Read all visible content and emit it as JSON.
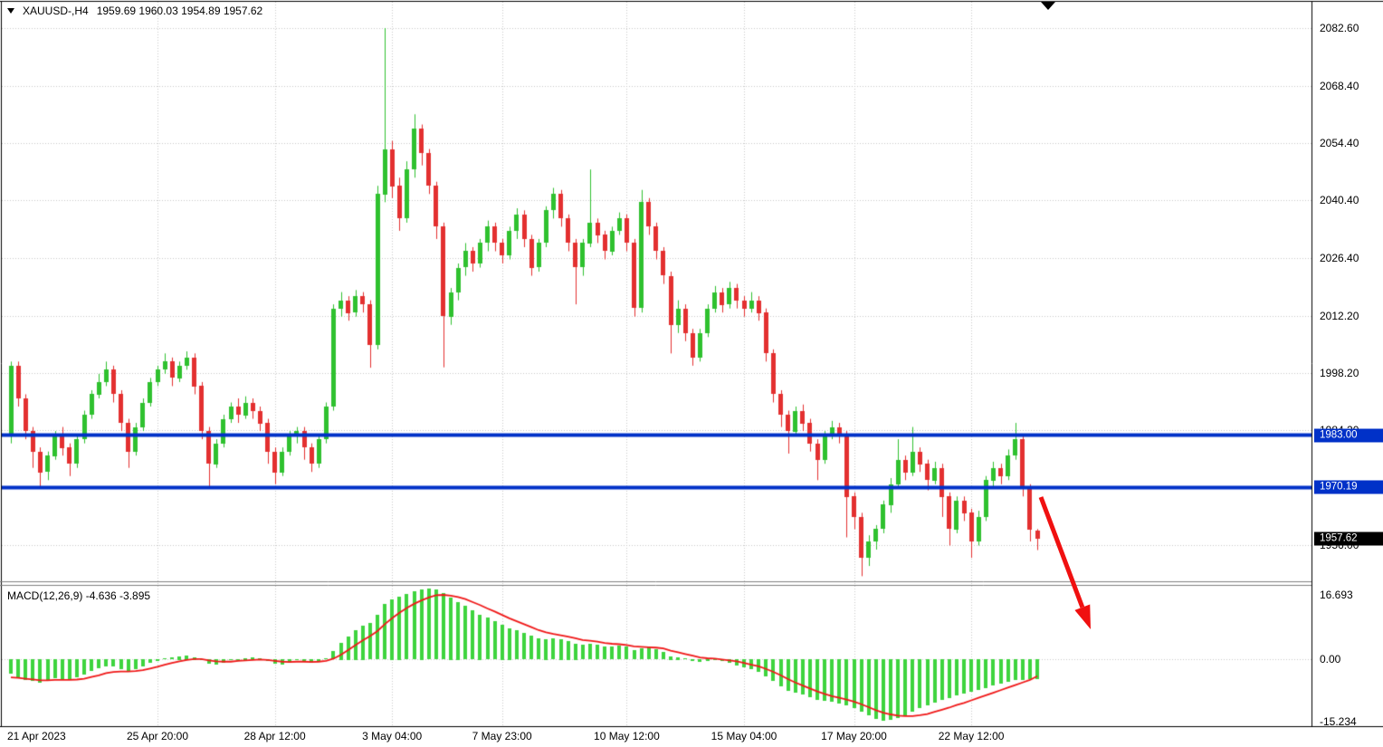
{
  "window": {
    "title_symbol": "XAUUSD-,H4",
    "title_ohlc": "1959.69 1960.03 1954.89 1957.62"
  },
  "colors": {
    "bull": "#2FC12F",
    "bear": "#E33030",
    "grid": "#C8C8C8",
    "level_line": "#0031C8",
    "level_badge_bg": "#0031C8",
    "current_badge_bg": "#000000",
    "macd_histogram": "#3ED43E",
    "macd_signal": "#F01818",
    "arrow": "#F01010",
    "frame": "#000000",
    "splitter": "#808080"
  },
  "price_axis": {
    "ticks": [
      "2082.60",
      "2068.40",
      "2054.40",
      "2040.40",
      "2026.40",
      "2012.20",
      "1998.20",
      "1984.20",
      "1970.20",
      "1956.00"
    ]
  },
  "time_axis": {
    "ticks": [
      {
        "index": 0,
        "label": "21 Apr 2023"
      },
      {
        "index": 20,
        "label": "25 Apr 20:00"
      },
      {
        "index": 36,
        "label": "28 Apr 12:00"
      },
      {
        "index": 52,
        "label": "3 May 04:00"
      },
      {
        "index": 67,
        "label": "7 May 23:00"
      },
      {
        "index": 84,
        "label": "10 May 12:00"
      },
      {
        "index": 100,
        "label": "15 May 04:00"
      },
      {
        "index": 115,
        "label": "17 May 20:00"
      },
      {
        "index": 131,
        "label": "22 May 12:00"
      }
    ]
  },
  "levels": {
    "resistance": {
      "label": "1983.00",
      "value": 1983.0
    },
    "support": {
      "label": "1970.19",
      "value": 1970.19
    }
  },
  "current_price": {
    "label": "1957.62",
    "value": 1957.62
  },
  "macd": {
    "label": "MACD(12,26,9) -4.636 -3.895",
    "main_value": -4.636,
    "signal_value": -3.895,
    "ticks": [
      {
        "label": "16.693",
        "value": 16.693
      },
      {
        "label": "0.00",
        "value": 0
      },
      {
        "label": "-15.234",
        "value": -15.234
      }
    ]
  },
  "annotations": {
    "trend_arrow": {
      "from": [
        1150,
        549
      ],
      "to": [
        1205,
        695
      ]
    }
  },
  "chart_data": [
    {
      "type": "candlestick",
      "title": "XAUUSD- H4",
      "ylim": [
        1947.5,
        2087.7
      ],
      "levels": [
        1983.0,
        1970.19
      ],
      "last_price": 1957.62,
      "ohlc": [
        [
          1983,
          2001,
          1981,
          2000
        ],
        [
          2000,
          2001,
          1990,
          1992
        ],
        [
          1992,
          1993,
          1982,
          1984
        ],
        [
          1984,
          1985,
          1975,
          1979
        ],
        [
          1979,
          1980,
          1970.5,
          1974
        ],
        [
          1974,
          1979,
          1972,
          1978
        ],
        [
          1978,
          1984,
          1977,
          1983
        ],
        [
          1983,
          1985,
          1978,
          1980
        ],
        [
          1980,
          1981,
          1973,
          1976
        ],
        [
          1976,
          1983,
          1975,
          1982
        ],
        [
          1982,
          1989,
          1981,
          1988
        ],
        [
          1988,
          1994,
          1987,
          1993
        ],
        [
          1993,
          1998,
          1992,
          1996
        ],
        [
          1996,
          2001,
          1995,
          1999
        ],
        [
          1999,
          2000,
          1991,
          1993
        ],
        [
          1993,
          1994,
          1984,
          1986
        ],
        [
          1986,
          1987,
          1975,
          1979
        ],
        [
          1979,
          1986,
          1978,
          1985
        ],
        [
          1985,
          1992,
          1984,
          1991
        ],
        [
          1991,
          1997,
          1990,
          1996
        ],
        [
          1996,
          2000,
          1995,
          1999
        ],
        [
          1999,
          2003,
          1998,
          2001
        ],
        [
          2001,
          2002,
          1995,
          1997
        ],
        [
          1997,
          2001,
          1996,
          2000
        ],
        [
          2000,
          2003.5,
          1999,
          2002
        ],
        [
          2002,
          2003,
          1993,
          1995
        ],
        [
          1995,
          1996,
          1982,
          1984
        ],
        [
          1984,
          1985,
          1970,
          1976
        ],
        [
          1976,
          1982,
          1975,
          1981
        ],
        [
          1981,
          1988,
          1980,
          1987
        ],
        [
          1987,
          1991,
          1986,
          1990
        ],
        [
          1990,
          1992,
          1986,
          1988
        ],
        [
          1988,
          1992.5,
          1987,
          1991
        ],
        [
          1991,
          1992,
          1987,
          1989
        ],
        [
          1989,
          1990,
          1984,
          1986
        ],
        [
          1986,
          1987,
          1976,
          1979
        ],
        [
          1979,
          1980,
          1971,
          1974
        ],
        [
          1974,
          1980,
          1973,
          1979
        ],
        [
          1979,
          1984,
          1978,
          1983
        ],
        [
          1983,
          1985,
          1981,
          1984
        ],
        [
          1984,
          1985,
          1977,
          1980
        ],
        [
          1980,
          1981,
          1974,
          1976
        ],
        [
          1976,
          1983,
          1975,
          1982
        ],
        [
          1982,
          1991,
          1981,
          1990
        ],
        [
          1990,
          2015,
          1989,
          2014
        ],
        [
          2014,
          2018,
          2012,
          2016
        ],
        [
          2016,
          2017,
          2011,
          2013
        ],
        [
          2013,
          2018.5,
          2012,
          2017
        ],
        [
          2017,
          2018,
          2013,
          2015
        ],
        [
          2015,
          2016,
          1999.5,
          2005
        ],
        [
          2005,
          2044,
          2004,
          2042
        ],
        [
          2042,
          2082.6,
          2040,
          2053
        ],
        [
          2053,
          2055,
          2041,
          2044
        ],
        [
          2044,
          2046,
          2033,
          2036
        ],
        [
          2036,
          2050,
          2035,
          2048
        ],
        [
          2048,
          2061.5,
          2046,
          2058
        ],
        [
          2058,
          2059,
          2049,
          2052
        ],
        [
          2052,
          2053,
          2042,
          2044
        ],
        [
          2044,
          2045,
          2031,
          2034
        ],
        [
          2034,
          2035,
          1999.6,
          2012
        ],
        [
          2012,
          2019,
          2010,
          2018
        ],
        [
          2018,
          2025,
          2016,
          2024
        ],
        [
          2024,
          2030,
          2022,
          2028
        ],
        [
          2028,
          2029,
          2023,
          2025
        ],
        [
          2025,
          2031,
          2024,
          2030
        ],
        [
          2030,
          2035.5,
          2028,
          2034
        ],
        [
          2034,
          2035,
          2028,
          2030
        ],
        [
          2030,
          2031,
          2025,
          2027
        ],
        [
          2027,
          2034,
          2026,
          2033
        ],
        [
          2033,
          2038.5,
          2031,
          2037
        ],
        [
          2037,
          2038,
          2029,
          2031
        ],
        [
          2031,
          2032,
          2022,
          2024
        ],
        [
          2024,
          2031,
          2023,
          2030
        ],
        [
          2030,
          2039,
          2029,
          2038
        ],
        [
          2038,
          2043.5,
          2036,
          2042
        ],
        [
          2042,
          2043,
          2034,
          2036
        ],
        [
          2036,
          2037,
          2028,
          2030
        ],
        [
          2030,
          2031,
          2015,
          2024
        ],
        [
          2024,
          2031,
          2022,
          2030
        ],
        [
          2030,
          2048,
          2029,
          2035
        ],
        [
          2035,
          2036,
          2030,
          2032
        ],
        [
          2032,
          2033,
          2026,
          2028
        ],
        [
          2028,
          2034,
          2027,
          2033
        ],
        [
          2033,
          2037.5,
          2032,
          2036
        ],
        [
          2036,
          2037,
          2028,
          2030
        ],
        [
          2030,
          2031,
          2012,
          2014
        ],
        [
          2014,
          2043,
          2013,
          2040
        ],
        [
          2040,
          2041,
          2032,
          2034
        ],
        [
          2034,
          2035,
          2026,
          2028
        ],
        [
          2028,
          2029,
          2020,
          2022
        ],
        [
          2022,
          2023,
          2003,
          2010
        ],
        [
          2010,
          2016,
          2008,
          2014
        ],
        [
          2014,
          2015,
          2006,
          2008
        ],
        [
          2008,
          2009,
          2000,
          2002
        ],
        [
          2002,
          2009,
          2001,
          2008
        ],
        [
          2008,
          2015,
          2007,
          2014
        ],
        [
          2014,
          2019.5,
          2013,
          2018
        ],
        [
          2018,
          2019,
          2013,
          2015
        ],
        [
          2015,
          2020.5,
          2014,
          2019
        ],
        [
          2019,
          2020,
          2014,
          2016
        ],
        [
          2016,
          2017,
          2012,
          2014
        ],
        [
          2014,
          2018,
          2013,
          2016
        ],
        [
          2016,
          2017,
          2011,
          2013
        ],
        [
          2013,
          2014,
          2001,
          2003
        ],
        [
          2003,
          2004,
          1991,
          1993
        ],
        [
          1993,
          1994,
          1985,
          1988
        ],
        [
          1988,
          1989,
          1978.5,
          1984
        ],
        [
          1984,
          1990,
          1983,
          1989
        ],
        [
          1989,
          1990.5,
          1984,
          1986
        ],
        [
          1986,
          1987,
          1979,
          1981
        ],
        [
          1981,
          1982,
          1972,
          1977
        ],
        [
          1977,
          1984,
          1976,
          1983
        ],
        [
          1983,
          1986.5,
          1982,
          1985
        ],
        [
          1985,
          1986,
          1981,
          1983
        ],
        [
          1983,
          1984,
          1958,
          1968
        ],
        [
          1968,
          1969,
          1960,
          1963
        ],
        [
          1963,
          1964,
          1948.5,
          1953
        ],
        [
          1953,
          1958.5,
          1951,
          1957
        ],
        [
          1957,
          1961,
          1955,
          1960
        ],
        [
          1960,
          1967,
          1959,
          1966
        ],
        [
          1966,
          1972.5,
          1964,
          1971
        ],
        [
          1971,
          1982,
          1970,
          1977
        ],
        [
          1977,
          1978,
          1972,
          1974
        ],
        [
          1974,
          1985,
          1973,
          1979
        ],
        [
          1979,
          1980,
          1974,
          1976
        ],
        [
          1976,
          1977,
          1969.5,
          1972
        ],
        [
          1972,
          1976.5,
          1971,
          1975
        ],
        [
          1975,
          1976,
          1963,
          1968
        ],
        [
          1968,
          1969,
          1956,
          1960
        ],
        [
          1960,
          1968,
          1959,
          1967
        ],
        [
          1967,
          1968,
          1962,
          1964
        ],
        [
          1964,
          1965,
          1953,
          1957
        ],
        [
          1957,
          1964.5,
          1956,
          1963
        ],
        [
          1963,
          1973,
          1962,
          1972
        ],
        [
          1972,
          1976.5,
          1970,
          1975
        ],
        [
          1975,
          1976,
          1971,
          1973
        ],
        [
          1973,
          1979.5,
          1972,
          1978
        ],
        [
          1978,
          1986,
          1977,
          1982
        ],
        [
          1982,
          1983,
          1968,
          1970
        ],
        [
          1970,
          1971,
          1957,
          1959.7
        ],
        [
          1959.69,
          1960.03,
          1954.89,
          1957.62
        ]
      ]
    },
    {
      "type": "bar+line",
      "title": "MACD(12,26,9)",
      "ylim": [
        -15.234,
        16.693
      ],
      "histogram": [
        -3.5,
        -4.2,
        -4.8,
        -5.2,
        -5.5,
        -5.0,
        -4.4,
        -4.6,
        -4.9,
        -4.3,
        -3.6,
        -2.8,
        -2.2,
        -1.6,
        -1.8,
        -2.4,
        -3.0,
        -2.4,
        -1.6,
        -0.9,
        -0.4,
        0.2,
        0.5,
        0.8,
        1.0,
        0.6,
        -0.2,
        -1.0,
        -1.2,
        -0.8,
        -0.3,
        0.1,
        0.4,
        0.5,
        0.2,
        -0.4,
        -1.0,
        -1.2,
        -0.8,
        -0.3,
        -0.5,
        -0.8,
        -0.4,
        0.2,
        2.0,
        4.0,
        5.5,
        7.0,
        8.0,
        8.6,
        10.5,
        13.0,
        14.2,
        14.8,
        15.4,
        16.0,
        16.5,
        16.7,
        16.4,
        15.6,
        14.6,
        13.6,
        12.6,
        11.6,
        10.6,
        9.8,
        9.0,
        8.2,
        7.4,
        6.8,
        6.2,
        5.6,
        5.0,
        4.8,
        5.0,
        4.8,
        4.4,
        3.8,
        3.4,
        3.6,
        3.4,
        3.0,
        3.0,
        3.2,
        3.0,
        2.2,
        2.6,
        2.8,
        2.4,
        1.8,
        0.8,
        0.6,
        0.2,
        -0.4,
        -0.6,
        -0.4,
        -0.2,
        -0.4,
        -0.8,
        -1.4,
        -2.0,
        -2.4,
        -3.0,
        -4.0,
        -5.2,
        -6.4,
        -7.4,
        -7.8,
        -8.4,
        -9.0,
        -9.6,
        -9.8,
        -10.0,
        -10.4,
        -10.8,
        -11.4,
        -12.4,
        -13.2,
        -14.0,
        -14.4,
        -14.2,
        -13.8,
        -13.2,
        -12.4,
        -11.6,
        -10.8,
        -10.2,
        -9.6,
        -9.2,
        -8.6,
        -8.0,
        -7.6,
        -7.2,
        -6.8,
        -6.2,
        -5.8,
        -5.4,
        -5.0,
        -4.8,
        -4.7,
        -4.636
      ],
      "signal": [
        -4.2,
        -4.3,
        -4.5,
        -4.7,
        -4.9,
        -4.9,
        -4.8,
        -4.8,
        -4.8,
        -4.7,
        -4.5,
        -4.1,
        -3.7,
        -3.2,
        -2.9,
        -2.8,
        -2.8,
        -2.7,
        -2.5,
        -2.1,
        -1.7,
        -1.2,
        -0.8,
        -0.4,
        -0.1,
        0.1,
        0.1,
        -0.2,
        -0.4,
        -0.5,
        -0.5,
        -0.3,
        -0.2,
        -0.1,
        0.0,
        -0.1,
        -0.3,
        -0.5,
        -0.6,
        -0.5,
        -0.5,
        -0.6,
        -0.5,
        -0.3,
        0.2,
        1.1,
        2.2,
        3.4,
        4.5,
        5.5,
        6.7,
        8.3,
        9.7,
        11.0,
        12.1,
        13.1,
        13.9,
        14.6,
        15.1,
        15.2,
        15.0,
        14.7,
        14.2,
        13.5,
        12.8,
        12.0,
        11.3,
        10.5,
        9.7,
        9.0,
        8.3,
        7.6,
        6.9,
        6.4,
        6.0,
        5.7,
        5.4,
        5.0,
        4.6,
        4.4,
        4.2,
        3.9,
        3.7,
        3.6,
        3.4,
        3.1,
        3.0,
        2.9,
        2.8,
        2.6,
        2.1,
        1.7,
        1.3,
        0.9,
        0.5,
        0.3,
        0.2,
        0.0,
        -0.2,
        -0.4,
        -0.8,
        -1.2,
        -1.6,
        -2.2,
        -2.9,
        -3.7,
        -4.6,
        -5.4,
        -6.1,
        -6.8,
        -7.5,
        -8.1,
        -8.6,
        -9.0,
        -9.4,
        -9.9,
        -10.5,
        -11.2,
        -11.9,
        -12.5,
        -12.9,
        -13.2,
        -13.3,
        -13.3,
        -13.1,
        -12.8,
        -12.3,
        -11.8,
        -11.3,
        -10.7,
        -10.2,
        -9.6,
        -9.0,
        -8.4,
        -7.8,
        -7.2,
        -6.6,
        -6.0,
        -5.4,
        -4.8,
        -3.895
      ]
    }
  ]
}
